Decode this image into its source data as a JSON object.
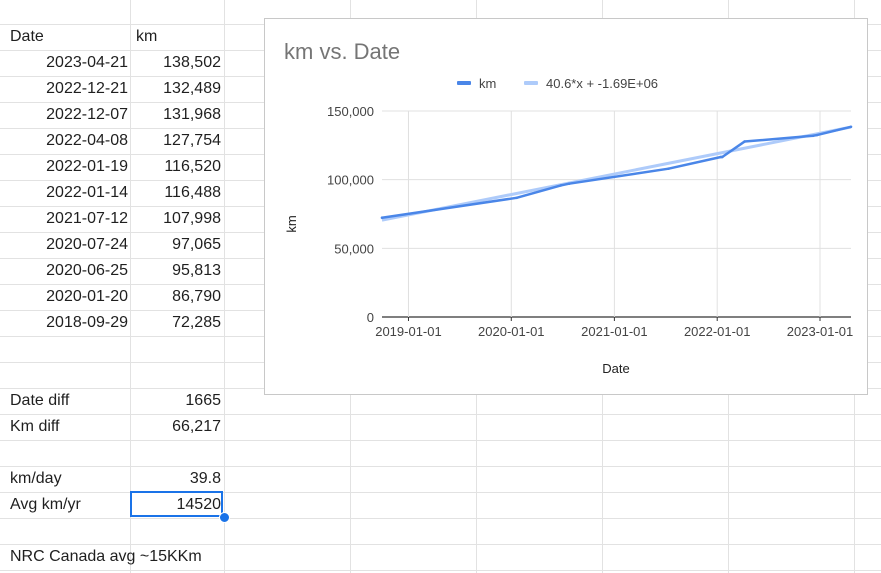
{
  "sheet": {
    "headers": {
      "date": "Date",
      "km": "km"
    },
    "rows": [
      {
        "date": "2023-04-21",
        "km": "138,502"
      },
      {
        "date": "2022-12-21",
        "km": "132,489"
      },
      {
        "date": "2022-12-07",
        "km": "131,968"
      },
      {
        "date": "2022-04-08",
        "km": "127,754"
      },
      {
        "date": "2022-01-19",
        "km": "116,520"
      },
      {
        "date": "2022-01-14",
        "km": "116,488"
      },
      {
        "date": "2021-07-12",
        "km": "107,998"
      },
      {
        "date": "2020-07-24",
        "km": "97,065"
      },
      {
        "date": "2020-06-25",
        "km": "95,813"
      },
      {
        "date": "2020-01-20",
        "km": "86,790"
      },
      {
        "date": "2018-09-29",
        "km": "72,285"
      }
    ],
    "date_diff": {
      "label": "Date diff",
      "value": "1665"
    },
    "km_diff": {
      "label": "Km diff",
      "value": "66,217"
    },
    "km_per_day": {
      "label": "km/day",
      "value": "39.8"
    },
    "avg_km_yr": {
      "label": "Avg km/yr",
      "value": "14520"
    },
    "note": "NRC Canada avg ~15KKm"
  },
  "colors": {
    "series": "#4a86e8",
    "trendline": "#aecbfa",
    "selection": "#1a73e8",
    "grid": "#e0e0e0"
  },
  "chart_data": {
    "type": "line",
    "title": "km vs. Date",
    "xlabel": "Date",
    "ylabel": "km",
    "x_ticks": [
      "2019-01-01",
      "2020-01-01",
      "2021-01-01",
      "2022-01-01",
      "2023-01-01"
    ],
    "y_ticks": [
      "0",
      "50,000",
      "100,000",
      "150,000"
    ],
    "xlim": [
      "2018-09-29",
      "2023-04-21"
    ],
    "ylim": [
      0,
      150000
    ],
    "legend_position": "top",
    "grid": true,
    "series": [
      {
        "name": "km",
        "x": [
          "2018-09-29",
          "2020-01-20",
          "2020-06-25",
          "2020-07-24",
          "2021-07-12",
          "2022-01-14",
          "2022-01-19",
          "2022-04-08",
          "2022-12-07",
          "2022-12-21",
          "2023-04-21"
        ],
        "y": [
          72285,
          86790,
          95813,
          97065,
          107998,
          116488,
          116520,
          127754,
          131968,
          132489,
          138502
        ]
      },
      {
        "name": "40.6*x + -1.69E+06",
        "type": "trendline",
        "x": [
          "2018-09-29",
          "2023-04-21"
        ],
        "y": [
          70500,
          138300
        ]
      }
    ]
  }
}
